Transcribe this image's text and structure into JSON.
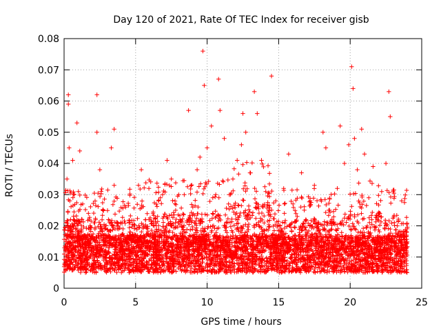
{
  "chart_data": {
    "type": "scatter",
    "title": "Day 120 of 2021, Rate Of TEC Index for receiver gisb",
    "xlabel": "GPS time / hours",
    "ylabel": "ROTI / TECUs",
    "xlim": [
      0,
      24
    ],
    "ylim": [
      0,
      0.08
    ],
    "xticks": [
      0,
      5,
      10,
      15,
      20,
      25
    ],
    "yticks": [
      0,
      0.01,
      0.02,
      0.03,
      0.04,
      0.05,
      0.06,
      0.07,
      0.08
    ],
    "xtick_labels": [
      "0",
      "5",
      "10",
      "15",
      "20",
      "25"
    ],
    "ytick_labels": [
      "0",
      "0.01",
      "0.02",
      "0.03",
      "0.04",
      "0.05",
      "0.06",
      "0.07",
      "0.08"
    ],
    "grid": true,
    "marker": "+",
    "color": "#ff0000",
    "series": [
      {
        "x": [
          0.1,
          0.2,
          0.3,
          0.3,
          0.35,
          0.4,
          0.5,
          0.6,
          0.7,
          0.8,
          0.9,
          1.0,
          1.1,
          1.2,
          1.3,
          1.5,
          1.7,
          1.9,
          2.1,
          2.3,
          2.3,
          2.5,
          2.7,
          2.9,
          3.1,
          3.3,
          3.5,
          3.5,
          3.7,
          4.0,
          4.3,
          4.6,
          4.9,
          5.2,
          5.4,
          5.7,
          6.0,
          6.3,
          6.6,
          6.9,
          7.2,
          7.5,
          7.8,
          8.1,
          8.4,
          8.7,
          9.0,
          9.3,
          9.5,
          9.7,
          9.8,
          10.0,
          10.3,
          10.6,
          10.8,
          10.9,
          11.2,
          11.5,
          11.8,
          12.1,
          12.4,
          12.5,
          12.7,
          13.0,
          13.3,
          13.5,
          13.8,
          14.1,
          14.3,
          14.5,
          14.8,
          15.1,
          15.4,
          15.7,
          16.0,
          16.3,
          16.6,
          16.9,
          17.2,
          17.5,
          17.8,
          18.1,
          18.3,
          18.5,
          18.8,
          19.1,
          19.3,
          19.6,
          19.9,
          20.1,
          20.2,
          20.3,
          20.5,
          20.8,
          21.0,
          21.3,
          21.6,
          21.9,
          22.2,
          22.5,
          22.7,
          22.8,
          23.0,
          23.3,
          23.6,
          23.9
        ],
        "y": [
          0.012,
          0.035,
          0.059,
          0.062,
          0.045,
          0.028,
          0.018,
          0.041,
          0.022,
          0.015,
          0.053,
          0.031,
          0.044,
          0.019,
          0.027,
          0.013,
          0.024,
          0.016,
          0.021,
          0.062,
          0.05,
          0.038,
          0.025,
          0.017,
          0.022,
          0.045,
          0.051,
          0.033,
          0.02,
          0.014,
          0.026,
          0.018,
          0.011,
          0.033,
          0.038,
          0.022,
          0.015,
          0.02,
          0.028,
          0.018,
          0.041,
          0.035,
          0.025,
          0.022,
          0.03,
          0.057,
          0.026,
          0.038,
          0.042,
          0.076,
          0.065,
          0.045,
          0.052,
          0.03,
          0.067,
          0.057,
          0.048,
          0.027,
          0.035,
          0.041,
          0.046,
          0.056,
          0.05,
          0.037,
          0.063,
          0.056,
          0.041,
          0.031,
          0.025,
          0.068,
          0.028,
          0.02,
          0.024,
          0.043,
          0.027,
          0.023,
          0.037,
          0.022,
          0.028,
          0.033,
          0.019,
          0.05,
          0.045,
          0.025,
          0.021,
          0.032,
          0.052,
          0.04,
          0.046,
          0.071,
          0.064,
          0.048,
          0.038,
          0.051,
          0.043,
          0.029,
          0.039,
          0.022,
          0.031,
          0.04,
          0.063,
          0.055,
          0.031,
          0.02,
          0.028,
          0.018
        ]
      }
    ],
    "dense_band": {
      "x_range": [
        0,
        24
      ],
      "typical_y_range": [
        0.004,
        0.025
      ],
      "median_y": 0.011
    }
  }
}
